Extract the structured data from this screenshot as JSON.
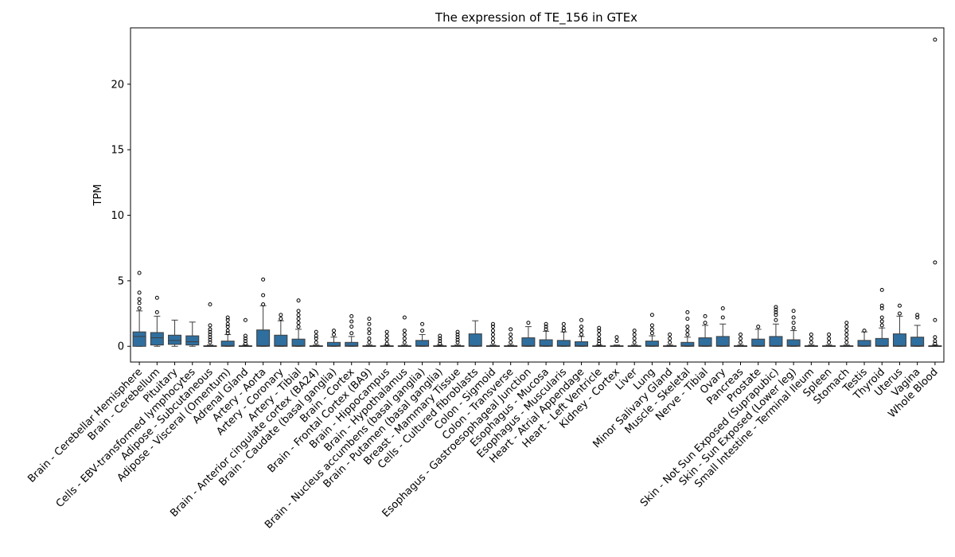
{
  "chart_data": {
    "type": "boxplot",
    "title": "The expression of TE_156 in GTEx",
    "xlabel": "",
    "ylabel": "TPM",
    "ylim": [
      -1.2,
      24.3
    ],
    "yticks": [
      0,
      5,
      10,
      15,
      20
    ],
    "colors": {
      "box": "#2f6f9f",
      "edge": "#3d3d3d",
      "median": "#3d3d3d"
    },
    "categories": [
      "Brain - Cerebellar Hemisphere",
      "Brain - Cerebellum",
      "Pituitary",
      "Cells - EBV-transformed lymphocytes",
      "Adipose - Subcutaneous",
      "Adipose - Visceral (Omentum)",
      "Adrenal Gland",
      "Artery - Aorta",
      "Artery - Coronary",
      "Artery - Tibial",
      "Brain - Anterior cingulate cortex (BA24)",
      "Brain - Caudate (basal ganglia)",
      "Brain - Cortex",
      "Brain - Frontal Cortex (BA9)",
      "Brain - Hippocampus",
      "Brain - Hypothalamus",
      "Brain - Nucleus accumbens (basal ganglia)",
      "Brain - Putamen (basal ganglia)",
      "Breast - Mammary Tissue",
      "Cells - Cultured fibroblasts",
      "Colon - Sigmoid",
      "Colon - Transverse",
      "Esophagus - Gastroesophageal Junction",
      "Esophagus - Mucosa",
      "Esophagus - Muscularis",
      "Heart - Atrial Appendage",
      "Heart - Left Ventricle",
      "Kidney - Cortex",
      "Liver",
      "Lung",
      "Minor Salivary Gland",
      "Muscle - Skeletal",
      "Nerve - Tibial",
      "Ovary",
      "Pancreas",
      "Prostate",
      "Skin - Not Sun Exposed (Suprapubic)",
      "Skin - Sun Exposed (Lower leg)",
      "Small Intestine - Terminal Ileum",
      "Spleen",
      "Stomach",
      "Testis",
      "Thyroid",
      "Uterus",
      "Vagina",
      "Whole Blood"
    ],
    "boxes": [
      {
        "q1": 0,
        "median": 0.75,
        "q3": 1.1,
        "whislo": 0,
        "whishi": 2.7,
        "fliers": [
          2.9,
          3.3,
          3.6,
          4.1,
          5.6
        ]
      },
      {
        "q1": 0.1,
        "median": 0.65,
        "q3": 1.05,
        "whislo": 0,
        "whishi": 2.3,
        "fliers": [
          2.6,
          3.7
        ]
      },
      {
        "q1": 0.15,
        "median": 0.45,
        "q3": 0.85,
        "whislo": 0,
        "whishi": 2.0,
        "fliers": []
      },
      {
        "q1": 0.1,
        "median": 0.35,
        "q3": 0.8,
        "whislo": 0,
        "whishi": 1.85,
        "fliers": []
      },
      {
        "q1": 0,
        "median": 0,
        "q3": 0.05,
        "whislo": 0,
        "whishi": 0.1,
        "fliers": [
          0.3,
          0.5,
          0.7,
          0.9,
          1.1,
          1.3,
          1.6,
          3.2
        ]
      },
      {
        "q1": 0,
        "median": 0.05,
        "q3": 0.4,
        "whislo": 0,
        "whishi": 0.9,
        "fliers": [
          1.0,
          1.2,
          1.5,
          1.7,
          2.0,
          2.2
        ]
      },
      {
        "q1": 0,
        "median": 0,
        "q3": 0.05,
        "whislo": 0,
        "whishi": 0.1,
        "fliers": [
          0.2,
          0.4,
          0.6,
          0.8,
          2.0
        ]
      },
      {
        "q1": 0,
        "median": 0.05,
        "q3": 1.25,
        "whislo": 0,
        "whishi": 3.1,
        "fliers": [
          3.2,
          3.9,
          5.1
        ]
      },
      {
        "q1": 0,
        "median": 0.05,
        "q3": 0.85,
        "whislo": 0,
        "whishi": 1.95,
        "fliers": [
          2.1,
          2.4
        ]
      },
      {
        "q1": 0,
        "median": 0.05,
        "q3": 0.55,
        "whislo": 0,
        "whishi": 1.3,
        "fliers": [
          1.5,
          1.8,
          2.1,
          2.4,
          2.7,
          3.5
        ]
      },
      {
        "q1": 0,
        "median": 0,
        "q3": 0.05,
        "whislo": 0,
        "whishi": 0.1,
        "fliers": [
          0.3,
          0.6,
          0.8,
          1.1
        ]
      },
      {
        "q1": 0,
        "median": 0.05,
        "q3": 0.3,
        "whislo": 0,
        "whishi": 0.7,
        "fliers": [
          0.9,
          1.2
        ]
      },
      {
        "q1": 0,
        "median": 0.05,
        "q3": 0.3,
        "whislo": 0,
        "whishi": 0.75,
        "fliers": [
          1.0,
          1.5,
          1.9,
          2.3
        ]
      },
      {
        "q1": 0,
        "median": 0,
        "q3": 0.05,
        "whislo": 0,
        "whishi": 0.1,
        "fliers": [
          0.3,
          0.6,
          1.0,
          1.3,
          1.7,
          2.1
        ]
      },
      {
        "q1": 0,
        "median": 0,
        "q3": 0.05,
        "whislo": 0,
        "whishi": 0.1,
        "fliers": [
          0.2,
          0.5,
          0.8,
          1.1
        ]
      },
      {
        "q1": 0,
        "median": 0,
        "q3": 0.05,
        "whislo": 0,
        "whishi": 0.1,
        "fliers": [
          0.3,
          0.6,
          0.9,
          1.2,
          2.2
        ]
      },
      {
        "q1": 0,
        "median": 0.05,
        "q3": 0.45,
        "whislo": 0,
        "whishi": 0.9,
        "fliers": [
          1.2,
          1.7
        ]
      },
      {
        "q1": 0,
        "median": 0,
        "q3": 0.05,
        "whislo": 0,
        "whishi": 0.1,
        "fliers": [
          0.2,
          0.4,
          0.6,
          0.8
        ]
      },
      {
        "q1": 0,
        "median": 0,
        "q3": 0.05,
        "whislo": 0,
        "whishi": 0.1,
        "fliers": [
          0.3,
          0.5,
          0.7,
          0.9,
          1.1
        ]
      },
      {
        "q1": 0,
        "median": 0.05,
        "q3": 0.95,
        "whislo": 0,
        "whishi": 1.95,
        "fliers": []
      },
      {
        "q1": 0,
        "median": 0,
        "q3": 0.05,
        "whislo": 0,
        "whishi": 0.1,
        "fliers": [
          0.3,
          0.6,
          0.9,
          1.2,
          1.5,
          1.7
        ]
      },
      {
        "q1": 0,
        "median": 0,
        "q3": 0.05,
        "whislo": 0,
        "whishi": 0.1,
        "fliers": [
          0.3,
          0.6,
          0.9,
          1.3
        ]
      },
      {
        "q1": 0,
        "median": 0.05,
        "q3": 0.65,
        "whislo": 0,
        "whishi": 1.5,
        "fliers": [
          1.8
        ]
      },
      {
        "q1": 0,
        "median": 0.05,
        "q3": 0.5,
        "whislo": 0,
        "whishi": 1.15,
        "fliers": [
          1.3,
          1.5,
          1.7
        ]
      },
      {
        "q1": 0,
        "median": 0.05,
        "q3": 0.45,
        "whislo": 0,
        "whishi": 1.1,
        "fliers": [
          1.2,
          1.4,
          1.7
        ]
      },
      {
        "q1": 0,
        "median": 0.05,
        "q3": 0.35,
        "whislo": 0,
        "whishi": 0.75,
        "fliers": [
          0.9,
          1.2,
          1.5,
          2.0
        ]
      },
      {
        "q1": 0,
        "median": 0,
        "q3": 0.05,
        "whislo": 0,
        "whishi": 0.1,
        "fliers": [
          0.2,
          0.4,
          0.6,
          0.9,
          1.2,
          1.4
        ]
      },
      {
        "q1": 0,
        "median": 0,
        "q3": 0.05,
        "whislo": 0,
        "whishi": 0.1,
        "fliers": [
          0.4,
          0.7
        ]
      },
      {
        "q1": 0,
        "median": 0,
        "q3": 0.05,
        "whislo": 0,
        "whishi": 0.1,
        "fliers": [
          0.3,
          0.6,
          0.9,
          1.2
        ]
      },
      {
        "q1": 0,
        "median": 0.05,
        "q3": 0.4,
        "whislo": 0,
        "whishi": 0.8,
        "fliers": [
          1.0,
          1.3,
          1.6,
          2.4
        ]
      },
      {
        "q1": 0,
        "median": 0,
        "q3": 0.05,
        "whislo": 0,
        "whishi": 0.1,
        "fliers": [
          0.3,
          0.6,
          0.9
        ]
      },
      {
        "q1": 0,
        "median": 0.05,
        "q3": 0.3,
        "whislo": 0,
        "whishi": 0.7,
        "fliers": [
          0.9,
          1.2,
          1.5,
          2.1,
          2.6
        ]
      },
      {
        "q1": 0,
        "median": 0.05,
        "q3": 0.65,
        "whislo": 0,
        "whishi": 1.6,
        "fliers": [
          1.8,
          2.3
        ]
      },
      {
        "q1": 0,
        "median": 0.05,
        "q3": 0.75,
        "whislo": 0,
        "whishi": 1.7,
        "fliers": [
          2.2,
          2.9
        ]
      },
      {
        "q1": 0,
        "median": 0,
        "q3": 0.05,
        "whislo": 0,
        "whishi": 0.1,
        "fliers": [
          0.3,
          0.6,
          0.9
        ]
      },
      {
        "q1": 0,
        "median": 0.05,
        "q3": 0.55,
        "whislo": 0,
        "whishi": 1.3,
        "fliers": [
          1.5
        ]
      },
      {
        "q1": 0,
        "median": 0.05,
        "q3": 0.75,
        "whislo": 0,
        "whishi": 1.7,
        "fliers": [
          2.0,
          2.4,
          2.6,
          2.8,
          3.0
        ]
      },
      {
        "q1": 0,
        "median": 0.05,
        "q3": 0.5,
        "whislo": 0,
        "whishi": 1.2,
        "fliers": [
          1.4,
          1.8,
          2.2,
          2.7
        ]
      },
      {
        "q1": 0,
        "median": 0,
        "q3": 0.05,
        "whislo": 0,
        "whishi": 0.1,
        "fliers": [
          0.3,
          0.6,
          0.9
        ]
      },
      {
        "q1": 0,
        "median": 0,
        "q3": 0.05,
        "whislo": 0,
        "whishi": 0.1,
        "fliers": [
          0.3,
          0.6,
          0.9
        ]
      },
      {
        "q1": 0,
        "median": 0,
        "q3": 0.05,
        "whislo": 0,
        "whishi": 0.1,
        "fliers": [
          0.3,
          0.6,
          0.9,
          1.2,
          1.5,
          1.8
        ]
      },
      {
        "q1": 0,
        "median": 0.05,
        "q3": 0.45,
        "whislo": 0,
        "whishi": 1.1,
        "fliers": [
          1.2
        ]
      },
      {
        "q1": 0,
        "median": 0.05,
        "q3": 0.6,
        "whislo": 0,
        "whishi": 1.4,
        "fliers": [
          1.6,
          1.9,
          2.2,
          2.9,
          3.1,
          4.3
        ]
      },
      {
        "q1": 0,
        "median": 0.05,
        "q3": 0.95,
        "whislo": 0,
        "whishi": 2.3,
        "fliers": [
          2.5,
          3.1
        ]
      },
      {
        "q1": 0,
        "median": 0.05,
        "q3": 0.7,
        "whislo": 0,
        "whishi": 1.6,
        "fliers": [
          2.2,
          2.4
        ]
      },
      {
        "q1": 0,
        "median": 0,
        "q3": 0.05,
        "whislo": 0,
        "whishi": 0.1,
        "fliers": [
          0.2,
          0.4,
          0.7,
          2.0,
          6.4,
          23.4
        ]
      }
    ]
  }
}
